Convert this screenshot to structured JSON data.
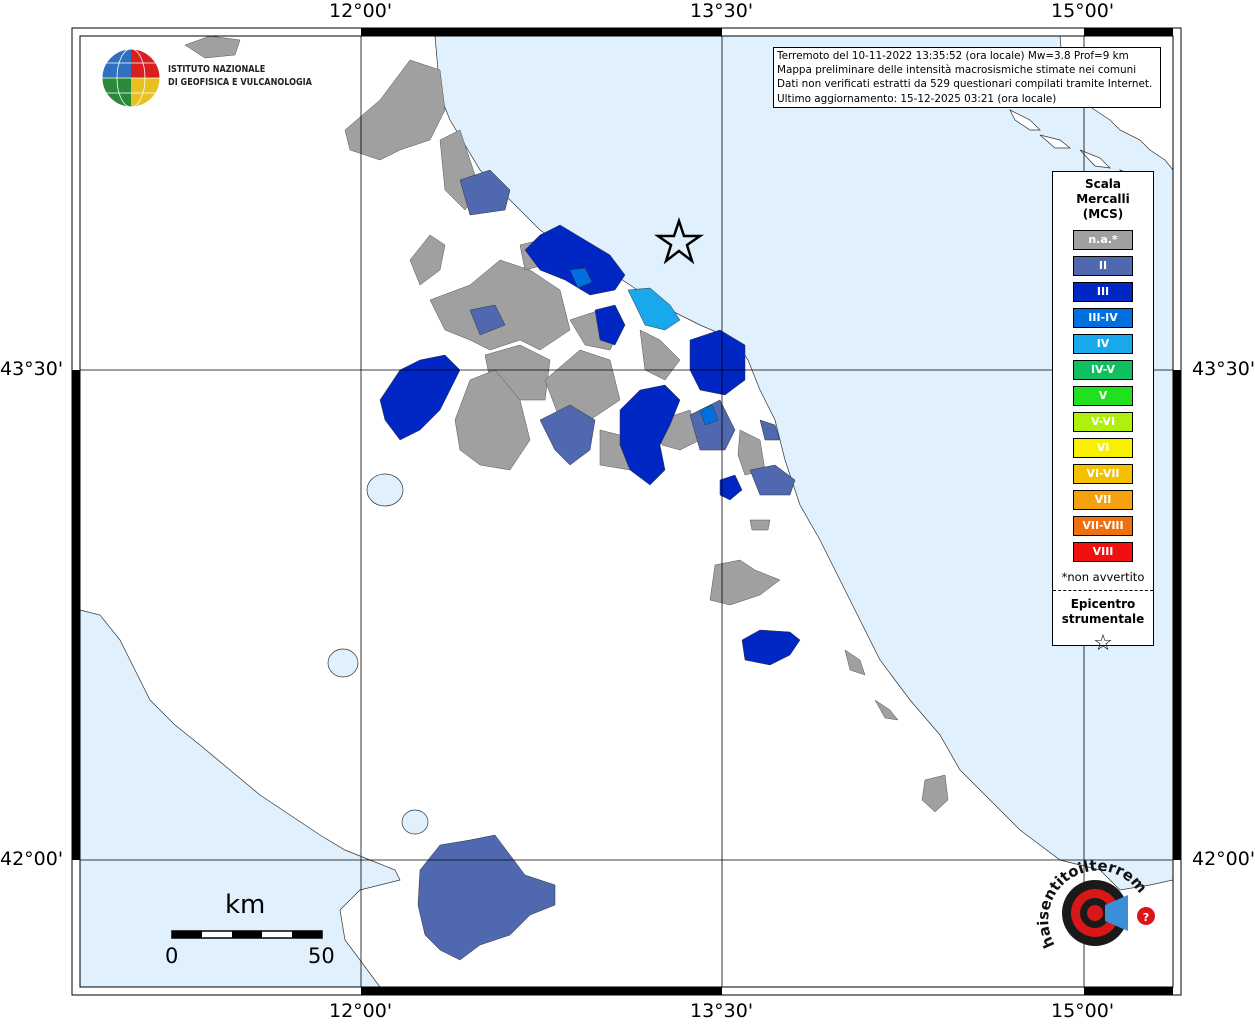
{
  "coords": {
    "lon_top": [
      "12°00'",
      "13°30'",
      "15°00'"
    ],
    "lon_bottom": [
      "12°00'",
      "13°30'",
      "15°00'"
    ],
    "lat_left": [
      "43°30'",
      "42°00'"
    ],
    "lat_right": [
      "43°30'",
      "42°00'"
    ]
  },
  "logo": {
    "line1": "ISTITUTO NAZIONALE",
    "line2": "DI GEOFISICA E VULCANOLOGIA",
    "icon": "globe-icon"
  },
  "info": {
    "line1": "Terremoto del 10-11-2022 13:35:52 (ora locale) Mw=3.8 Prof=9 km",
    "line2": "Mappa preliminare delle intensità macrosismiche stimate nei comuni",
    "line3": "Dati non verificati estratti da 529 questionari compilati tramite Internet.",
    "line4": "Ultimo aggiornamento: 15-12-2025 03:21 (ora locale)"
  },
  "legend": {
    "title_1": "Scala",
    "title_2": "Mercalli",
    "title_3": "(MCS)",
    "items": [
      {
        "label": "n.a.*",
        "color": "#a0a0a0"
      },
      {
        "label": "II",
        "color": "#5068b0"
      },
      {
        "label": "III",
        "color": "#0026c4"
      },
      {
        "label": "III-IV",
        "color": "#0070e0"
      },
      {
        "label": "IV",
        "color": "#1aa8ec"
      },
      {
        "label": "IV-V",
        "color": "#10c060"
      },
      {
        "label": "V",
        "color": "#20e020"
      },
      {
        "label": "V-VI",
        "color": "#b0f010"
      },
      {
        "label": "VI",
        "color": "#f8f000"
      },
      {
        "label": "VI-VII",
        "color": "#f4c000"
      },
      {
        "label": "VII",
        "color": "#f4a010"
      },
      {
        "label": "VII-VIII",
        "color": "#f07010"
      },
      {
        "label": "VIII",
        "color": "#f01010"
      }
    ],
    "note": "*non avvertito",
    "epi_1": "Epicentro",
    "epi_2": "strumentale",
    "epi_icon": "star-icon"
  },
  "scale": {
    "title": "km",
    "min": "0",
    "max": "50"
  },
  "badge": {
    "text": "haisentitoilterremoto.it",
    "url": "www.",
    "icon": "megaphone-icon"
  },
  "colors": {
    "sea": "#e0f0fc",
    "land": "#ffffff",
    "na": "#a0a0a0",
    "ii": "#5068b0",
    "iii": "#0026c4",
    "iii_iv": "#0070e0",
    "iv": "#1aa8ec"
  }
}
